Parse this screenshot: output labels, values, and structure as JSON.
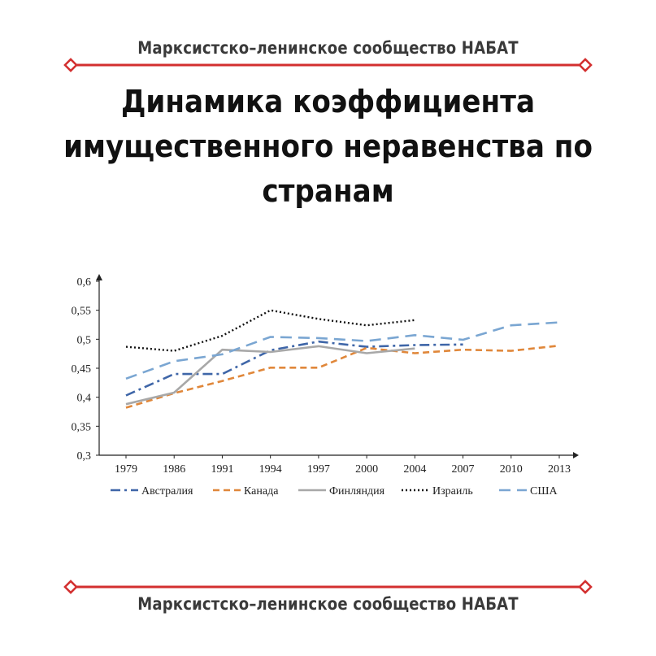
{
  "header": {
    "banner": "Марксистско–ленинское сообщество НАБАТ"
  },
  "footer": {
    "banner": "Марксистско–ленинское сообщество НАБАТ"
  },
  "title_lines": [
    "Динамика коэффициента",
    "имущественного неравенства по",
    "странам"
  ],
  "colors": {
    "rule": "#d32f2f",
    "axis": "#222222"
  },
  "chart_data": {
    "type": "line",
    "categories": [
      "1979",
      "1986",
      "1991",
      "1994",
      "1997",
      "2000",
      "2004",
      "2007",
      "2010",
      "2013"
    ],
    "yticks": [
      "0,3",
      "0,35",
      "0,4",
      "0,45",
      "0,5",
      "0,55",
      "0,6"
    ],
    "ylim": [
      0.3,
      0.6
    ],
    "grid": false,
    "legend_position": "bottom",
    "series": [
      {
        "name": "Австралия",
        "color": "#3f66a8",
        "dash": "dash-dot",
        "values": [
          0.403,
          0.44,
          0.44,
          0.481,
          0.496,
          0.487,
          0.49,
          0.491,
          null,
          null
        ]
      },
      {
        "name": "Канада",
        "color": "#e0873a",
        "dash": "dash",
        "values": [
          0.382,
          0.407,
          0.428,
          0.451,
          0.451,
          0.485,
          0.476,
          0.482,
          0.48,
          0.489
        ]
      },
      {
        "name": "Финляндия",
        "color": "#a8a8a8",
        "dash": "solid",
        "values": [
          0.388,
          0.408,
          0.482,
          0.478,
          0.488,
          0.476,
          0.484,
          null,
          null,
          null
        ]
      },
      {
        "name": "Израиль",
        "color": "#111111",
        "dash": "dot",
        "values": [
          0.487,
          0.48,
          0.506,
          0.55,
          0.535,
          0.524,
          0.533,
          null,
          null,
          null
        ]
      },
      {
        "name": "США",
        "color": "#7aa6d2",
        "dash": "long-dash",
        "values": [
          0.432,
          0.462,
          0.474,
          0.504,
          0.502,
          0.497,
          0.507,
          0.499,
          0.524,
          0.529
        ]
      }
    ]
  }
}
